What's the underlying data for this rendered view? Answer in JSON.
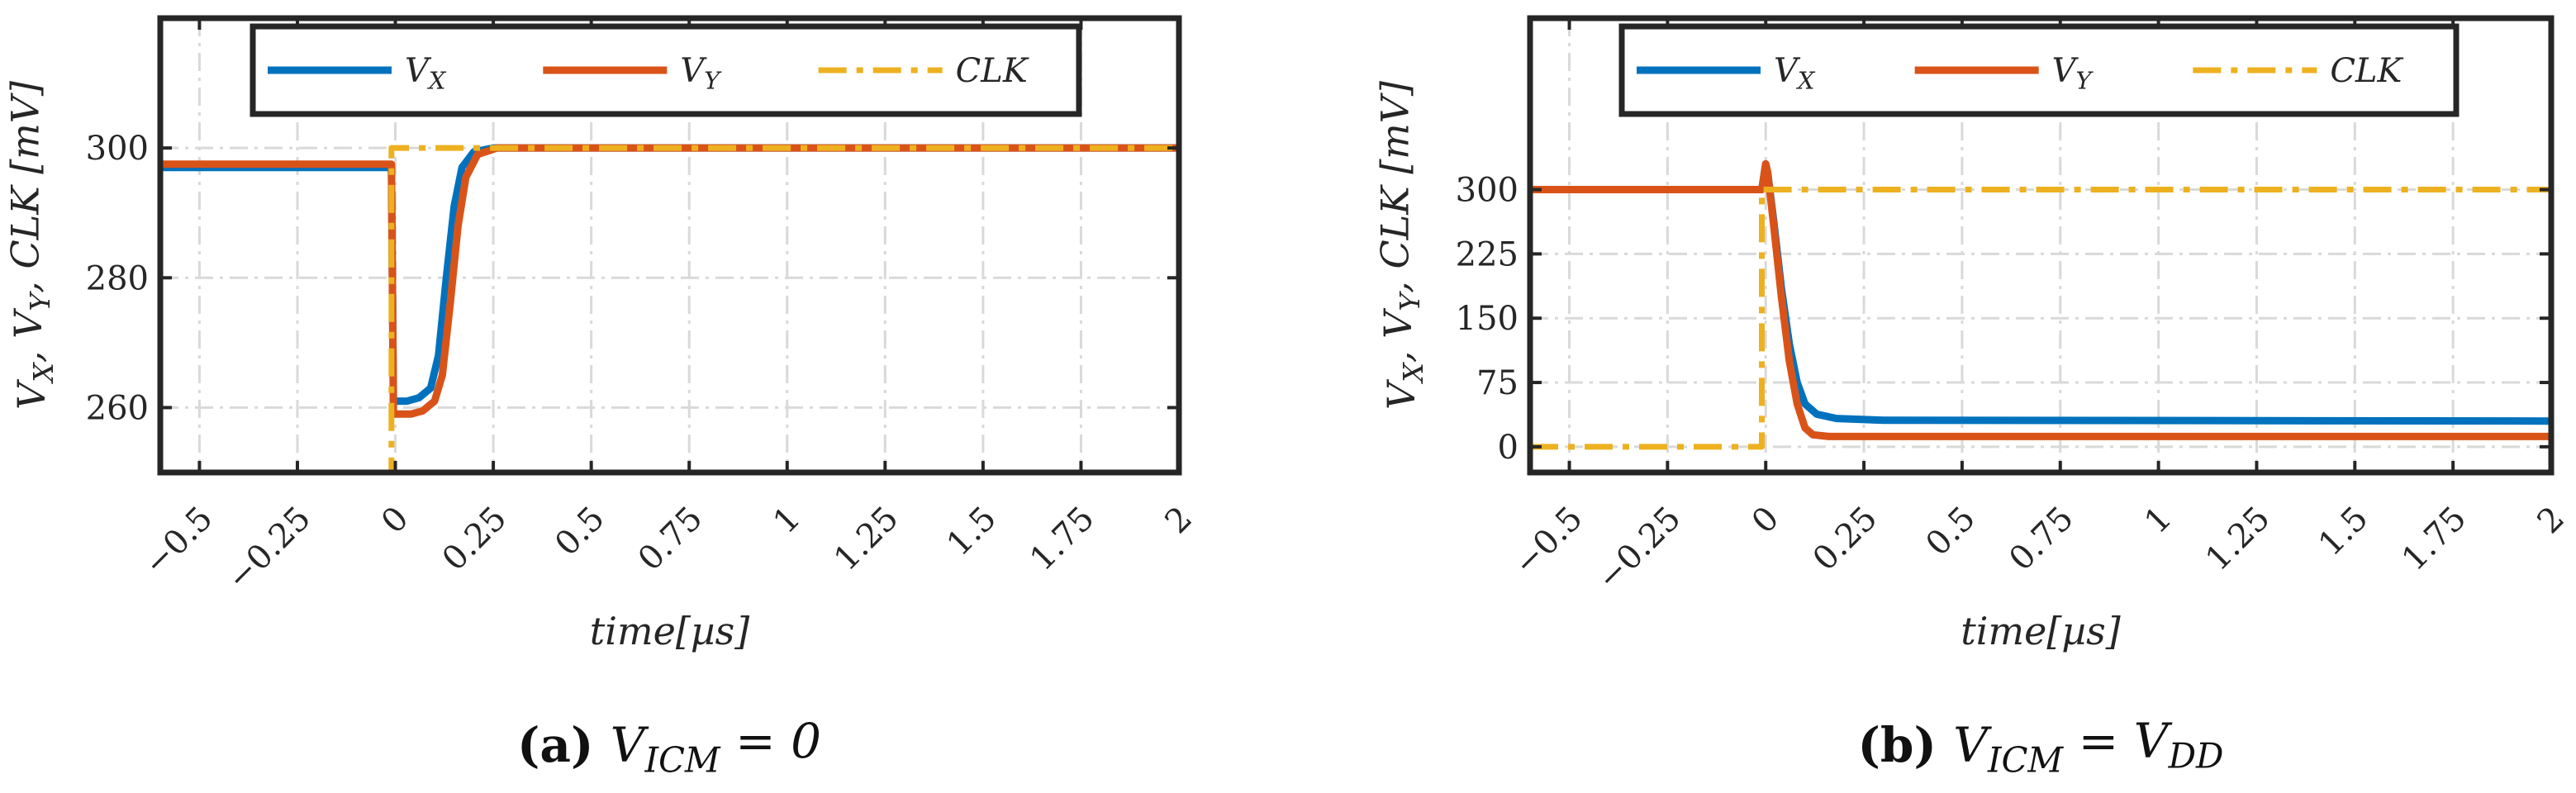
{
  "colors": {
    "vx": "#0072BD",
    "vy": "#D95319",
    "clk": "#EDB120",
    "axis": "#262626",
    "grid": "#d9d9d9"
  },
  "chart_data": [
    {
      "type": "line",
      "xlabel": "time[µs]",
      "ylabel": "V_X, V_Y, CLK [mV]",
      "caption_tag": "(a)",
      "caption": "V_ICM = 0",
      "xlim": [
        -0.6,
        2
      ],
      "ylim": [
        250,
        320
      ],
      "xticks": [
        -0.5,
        -0.25,
        0,
        0.25,
        0.5,
        0.75,
        1,
        1.25,
        1.5,
        1.75,
        2
      ],
      "xtick_labels": [
        "−0.5",
        "−0.25",
        "0",
        "0.25",
        "0.5",
        "0.75",
        "1",
        "1.25",
        "1.5",
        "1.75",
        "2"
      ],
      "yticks": [
        260,
        280,
        300
      ],
      "ytick_labels": [
        "260",
        "280",
        "300"
      ],
      "grid": true,
      "legend": {
        "placement": "top-center",
        "orientation": "horizontal"
      },
      "series": [
        {
          "name": "V_X",
          "key": "vx",
          "style": "solid",
          "x": [
            -0.6,
            -0.01,
            -0.005,
            0.0,
            0.03,
            0.06,
            0.09,
            0.11,
            0.13,
            0.15,
            0.17,
            0.2,
            0.25,
            2
          ],
          "y": [
            297,
            297,
            261,
            261,
            261,
            261.5,
            263,
            268,
            280,
            291,
            297,
            299.4,
            300,
            300
          ]
        },
        {
          "name": "V_Y",
          "key": "vy",
          "style": "solid",
          "x": [
            -0.6,
            -0.01,
            -0.005,
            0.0,
            0.04,
            0.07,
            0.1,
            0.12,
            0.14,
            0.16,
            0.18,
            0.21,
            0.26,
            2
          ],
          "y": [
            297.5,
            297.5,
            259,
            259,
            259,
            259.5,
            261,
            265,
            276,
            288,
            295.5,
            299,
            300,
            300
          ]
        },
        {
          "name": "CLK",
          "key": "clk",
          "style": "dashdot",
          "x": [
            -0.6,
            -0.01,
            -0.01,
            0.0,
            2
          ],
          "y": [
            250,
            250,
            300,
            300,
            300
          ]
        }
      ]
    },
    {
      "type": "line",
      "xlabel": "time[µs]",
      "ylabel": "V_X, V_Y, CLK [mV]",
      "caption_tag": "(b)",
      "caption": "V_ICM = V_DD",
      "xlim": [
        -0.6,
        2
      ],
      "ylim": [
        -30,
        500
      ],
      "xticks": [
        -0.5,
        -0.25,
        0,
        0.25,
        0.5,
        0.75,
        1,
        1.25,
        1.5,
        1.75,
        2
      ],
      "xtick_labels": [
        "−0.5",
        "−0.25",
        "0",
        "0.25",
        "0.5",
        "0.75",
        "1",
        "1.25",
        "1.5",
        "1.75",
        "2"
      ],
      "yticks": [
        0,
        75,
        150,
        225,
        300
      ],
      "ytick_labels": [
        "0",
        "75",
        "150",
        "225",
        "300"
      ],
      "grid": true,
      "legend": {
        "placement": "top-center",
        "orientation": "horizontal"
      },
      "series": [
        {
          "name": "V_X",
          "key": "vx",
          "style": "solid",
          "x": [
            -0.6,
            -0.01,
            0.0,
            0.005,
            0.02,
            0.04,
            0.06,
            0.08,
            0.1,
            0.13,
            0.18,
            0.3,
            2
          ],
          "y": [
            300,
            300,
            330,
            320,
            265,
            185,
            120,
            75,
            50,
            38,
            33,
            31,
            30
          ]
        },
        {
          "name": "V_Y",
          "key": "vy",
          "style": "solid",
          "x": [
            -0.6,
            -0.01,
            0.0,
            0.005,
            0.02,
            0.04,
            0.06,
            0.08,
            0.1,
            0.12,
            0.16,
            0.3,
            2
          ],
          "y": [
            300,
            300,
            330,
            320,
            260,
            175,
            100,
            50,
            22,
            14,
            12,
            12,
            12
          ]
        },
        {
          "name": "CLK",
          "key": "clk",
          "style": "dashdot",
          "x": [
            -0.6,
            -0.01,
            -0.01,
            0.0,
            2
          ],
          "y": [
            0,
            0,
            300,
            300,
            300
          ]
        }
      ]
    }
  ]
}
